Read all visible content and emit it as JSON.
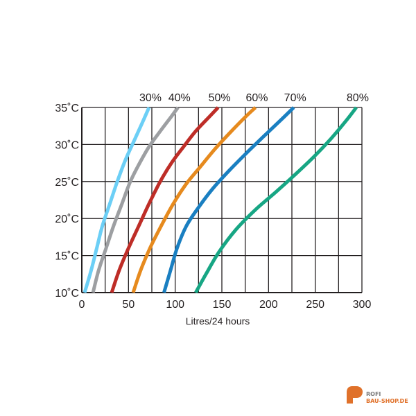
{
  "chart_data": {
    "type": "line",
    "title": "",
    "xlabel": "Litres/24 hours",
    "ylabel": "",
    "xlim": [
      0,
      300
    ],
    "ylim": [
      10,
      35
    ],
    "xticks": [
      "0",
      "50",
      "100",
      "150",
      "200",
      "250",
      "300"
    ],
    "yticks": [
      "10˚C",
      "15˚C",
      "20˚C",
      "25˚C",
      "30˚C",
      "35˚C"
    ],
    "grid": true,
    "series": [
      {
        "name": "30%",
        "color": "#6ccff6",
        "x": [
          3,
          10,
          16,
          22,
          30,
          38,
          47,
          56,
          65,
          72
        ],
        "y": [
          10,
          13,
          16,
          19,
          22,
          25,
          28,
          30.5,
          33,
          35
        ]
      },
      {
        "name": "40%",
        "color": "#9d9fa2",
        "x": [
          12,
          18,
          26,
          34,
          43,
          52,
          62,
          72,
          84,
          96,
          103
        ],
        "y": [
          10,
          13,
          16,
          19,
          22,
          25,
          27.5,
          29.7,
          31.8,
          33.8,
          35
        ]
      },
      {
        "name": "50%",
        "color": "#be2d27",
        "x": [
          32,
          40,
          50,
          61,
          72,
          84,
          96,
          109,
          122,
          137,
          146
        ],
        "y": [
          10,
          13,
          16,
          19,
          22,
          25,
          27.5,
          29.7,
          31.8,
          33.8,
          35
        ]
      },
      {
        "name": "60%",
        "color": "#e68a1e",
        "x": [
          55,
          63,
          73,
          85,
          98,
          112,
          127,
          142,
          158,
          175,
          186
        ],
        "y": [
          10,
          13,
          16,
          19,
          22,
          24.7,
          27,
          29.3,
          31.5,
          33.7,
          35
        ]
      },
      {
        "name": "70%",
        "color": "#1a7fc1",
        "x": [
          88,
          95,
          102,
          112,
          125,
          140,
          158,
          176,
          194,
          214,
          227
        ],
        "y": [
          10,
          13,
          16,
          19,
          21.5,
          24,
          26.5,
          28.8,
          31,
          33.4,
          35
        ]
      },
      {
        "name": "80%",
        "color": "#17a684",
        "x": [
          122,
          133,
          147,
          165,
          186,
          208,
          229,
          249,
          267,
          283,
          294
        ],
        "y": [
          10,
          12.5,
          15.5,
          18.5,
          21.2,
          23.6,
          26,
          28.4,
          30.8,
          33.2,
          35
        ]
      }
    ]
  },
  "watermark": {
    "letter": "P",
    "line1": "ROFI",
    "line2": "BAU-SHOP.DE",
    "color": "#e0712a"
  }
}
